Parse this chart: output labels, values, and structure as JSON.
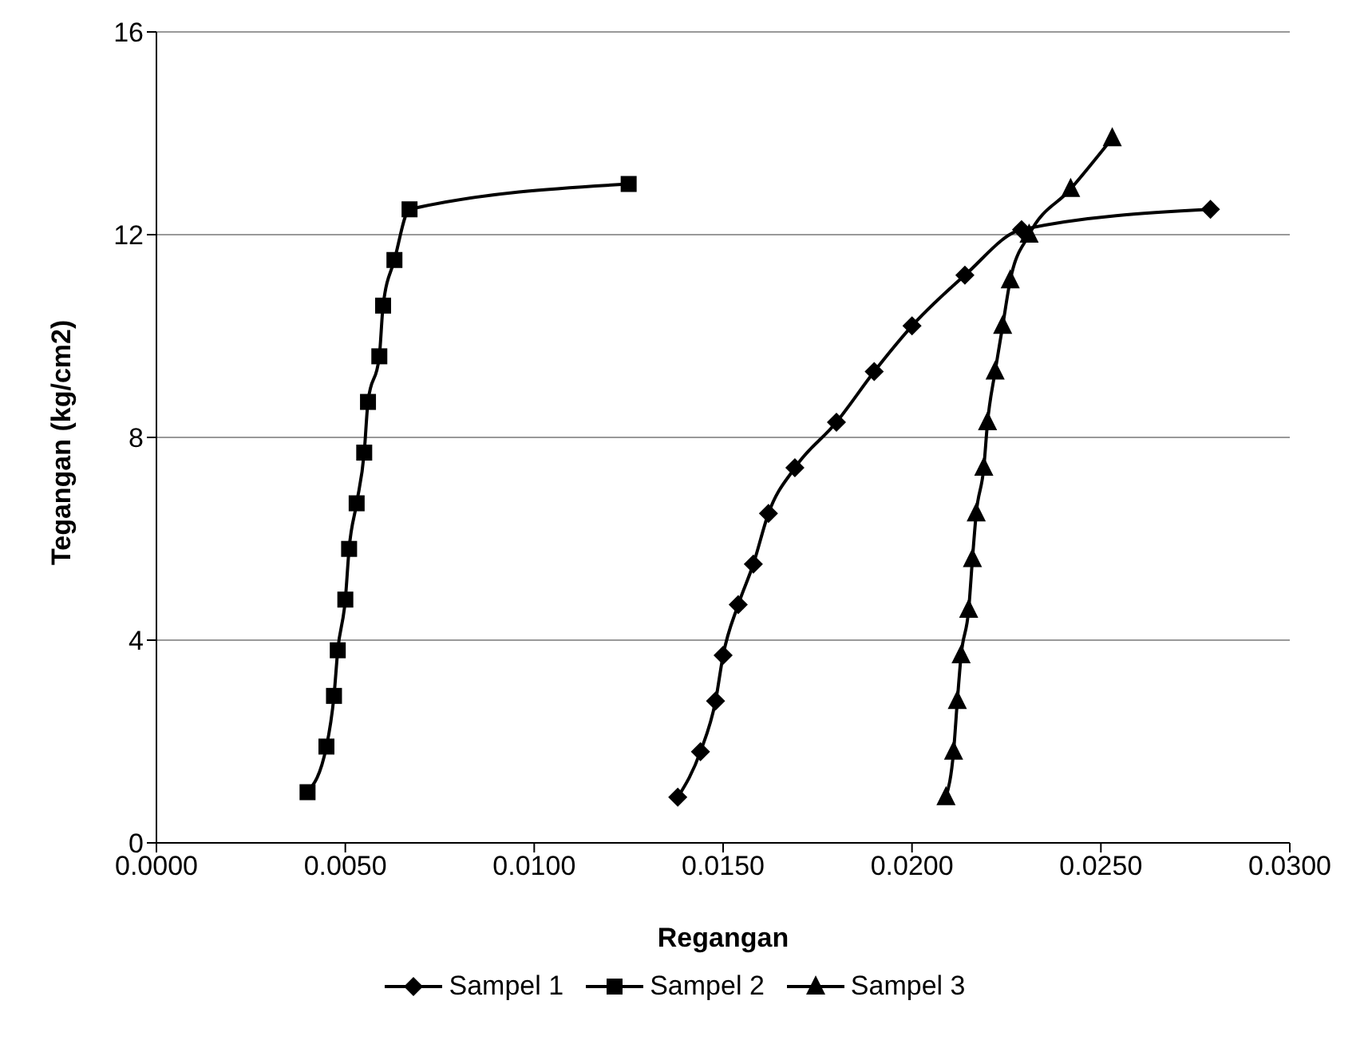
{
  "chart_data": {
    "type": "line",
    "xlabel": "Regangan",
    "ylabel": "Tegangan (kg/cm2)",
    "xlim": [
      0,
      0.03
    ],
    "xticks": [
      {
        "value": 0,
        "label": "0.0000"
      },
      {
        "value": 0.005,
        "label": "0.0050"
      },
      {
        "value": 0.01,
        "label": "0.0100"
      },
      {
        "value": 0.015,
        "label": "0.0150"
      },
      {
        "value": 0.02,
        "label": "0.0200"
      },
      {
        "value": 0.025,
        "label": "0.0250"
      },
      {
        "value": 0.03,
        "label": "0.0300"
      }
    ],
    "ylim": [
      0,
      16
    ],
    "yticks": [
      0,
      4,
      8,
      12,
      16
    ],
    "grid": "y",
    "legend": "bottom",
    "line_style": "solid",
    "series": [
      {
        "name": "Sampel 1",
        "color": "#000000",
        "marker": "diamond",
        "x": [
          0.0138,
          0.0144,
          0.0148,
          0.015,
          0.0154,
          0.0158,
          0.0162,
          0.0169,
          0.018,
          0.019,
          0.02,
          0.0214,
          0.0229,
          0.0279
        ],
        "values": [
          0.9,
          1.8,
          2.8,
          3.7,
          4.7,
          5.5,
          6.5,
          7.4,
          8.3,
          9.3,
          10.2,
          11.2,
          12.1,
          12.5
        ]
      },
      {
        "name": "Sampel 2",
        "color": "#000000",
        "marker": "square",
        "x": [
          0.004,
          0.0045,
          0.0047,
          0.0048,
          0.005,
          0.0051,
          0.0053,
          0.0055,
          0.0056,
          0.0059,
          0.006,
          0.0063,
          0.0067,
          0.0125
        ],
        "values": [
          1,
          1.9,
          2.9,
          3.8,
          4.8,
          5.8,
          6.7,
          7.7,
          8.7,
          9.6,
          10.6,
          11.5,
          12.5,
          13
        ]
      },
      {
        "name": "Sampel 3",
        "color": "#000000",
        "marker": "triangle",
        "x": [
          0.0209,
          0.0211,
          0.0212,
          0.0213,
          0.0215,
          0.0216,
          0.0217,
          0.0219,
          0.022,
          0.0222,
          0.0224,
          0.0226,
          0.0231,
          0.0242,
          0.0253
        ],
        "values": [
          0.9,
          1.8,
          2.8,
          3.7,
          4.6,
          5.6,
          6.5,
          7.4,
          8.3,
          9.3,
          10.2,
          11.1,
          12,
          12.9,
          13.9
        ]
      }
    ]
  }
}
